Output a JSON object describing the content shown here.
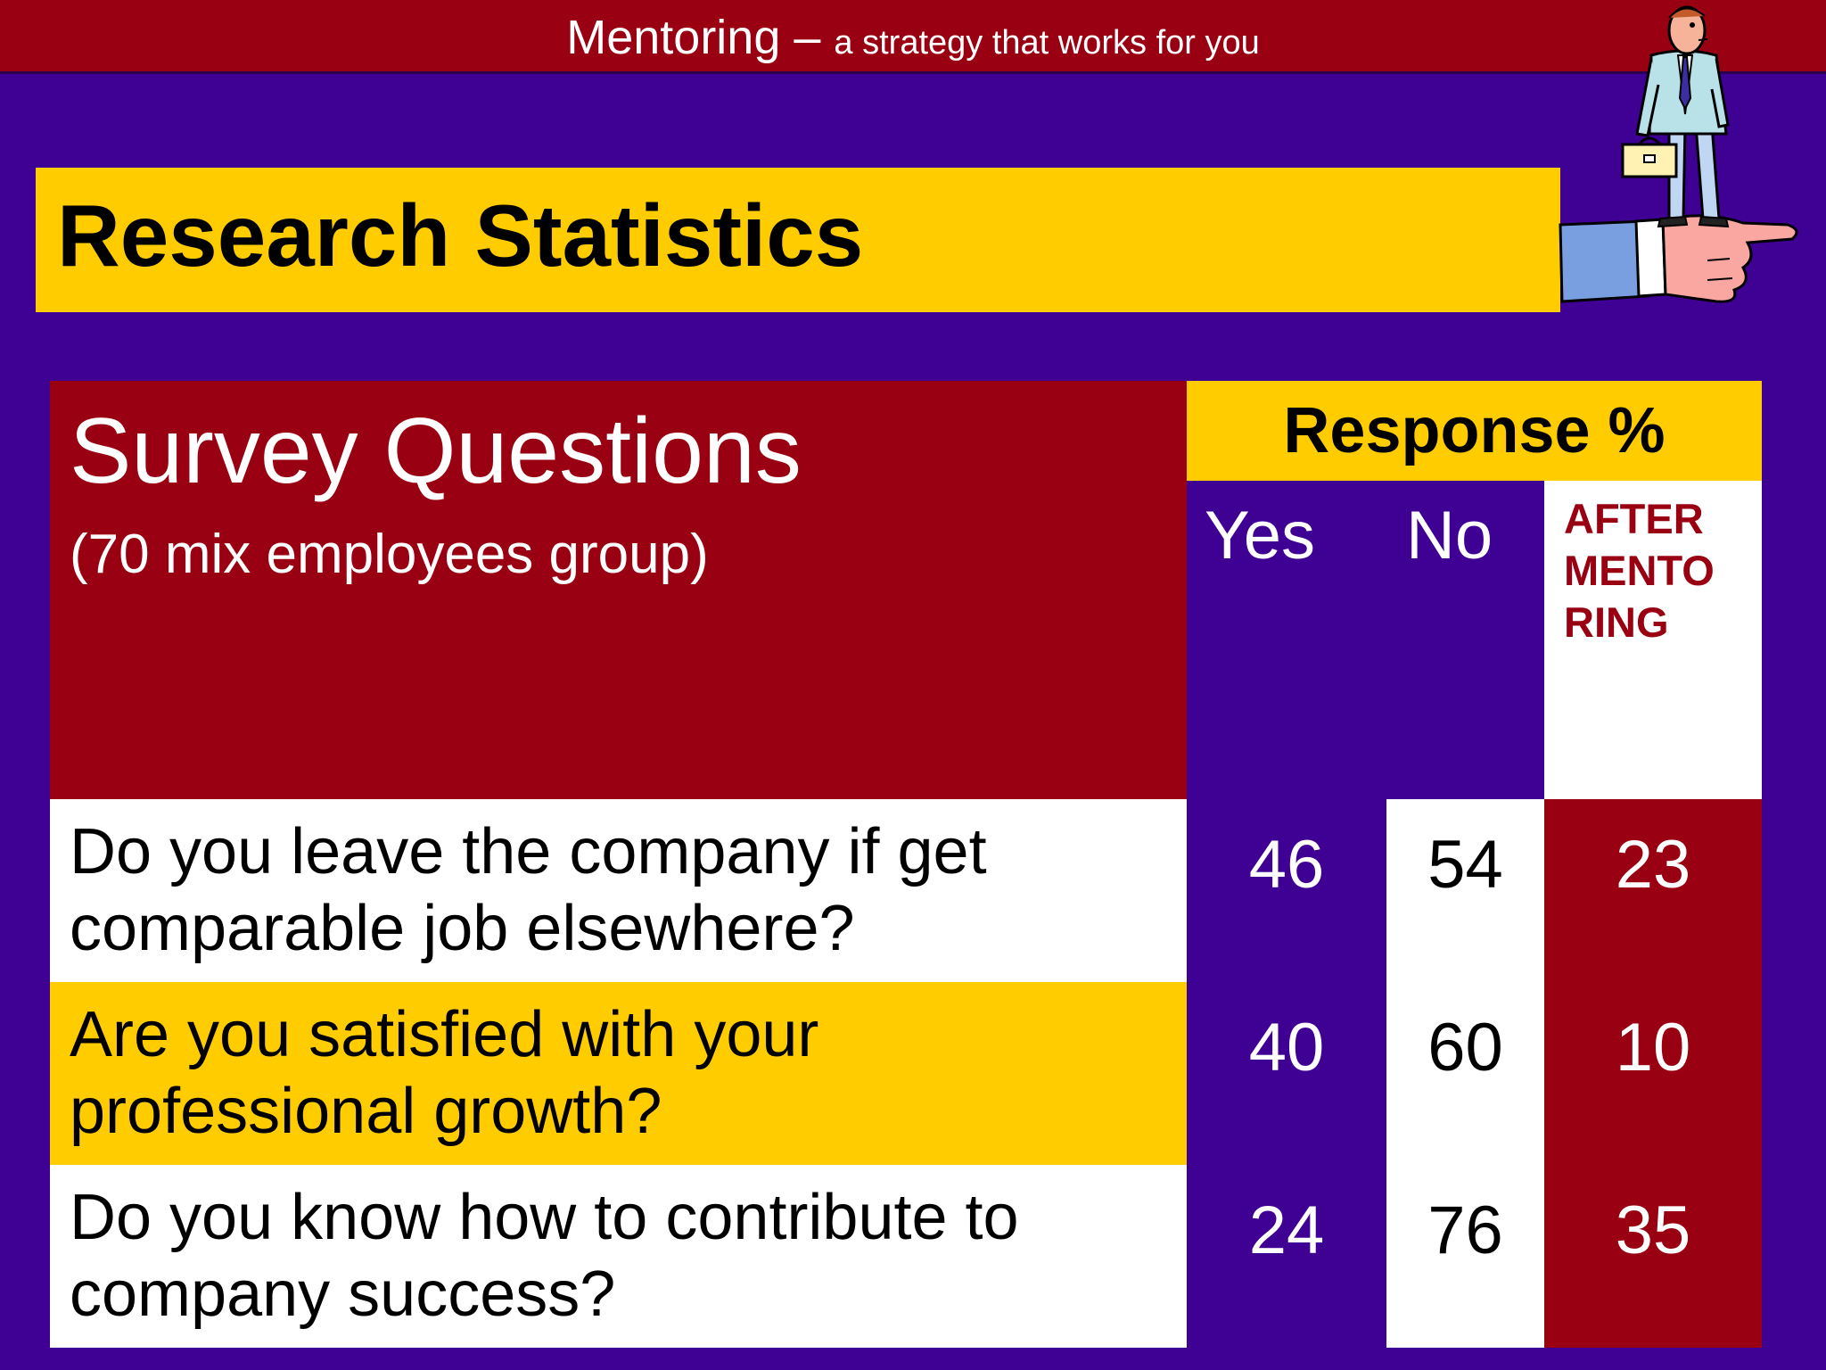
{
  "header": {
    "title": "Mentoring",
    "dash": " – ",
    "subtitle": "a strategy that works for you"
  },
  "slide_title": "Research Statistics",
  "table": {
    "question_header": "Survey Questions",
    "question_subheader": "(70 mix employees group)",
    "response_header": "Response %",
    "col_yes": "Yes",
    "col_no": "No",
    "col_after": "AFTER MENTO RING",
    "rows": [
      {
        "question": "Do you leave the company if get comparable job elsewhere?",
        "yes": "46",
        "no": "54",
        "after": "23"
      },
      {
        "question": "Are you satisfied with your professional growth?",
        "yes": "40",
        "no": "60",
        "after": "10"
      },
      {
        "question": "Do you know how to contribute to company success?",
        "yes": "24",
        "no": "76",
        "after": "35"
      }
    ]
  },
  "colors": {
    "background": "#3F0094",
    "dark_red": "#990012",
    "yellow": "#FFCC00",
    "white": "#FFFFFF"
  },
  "icons": {
    "clipart": "businessman-on-pointing-hand-icon"
  }
}
